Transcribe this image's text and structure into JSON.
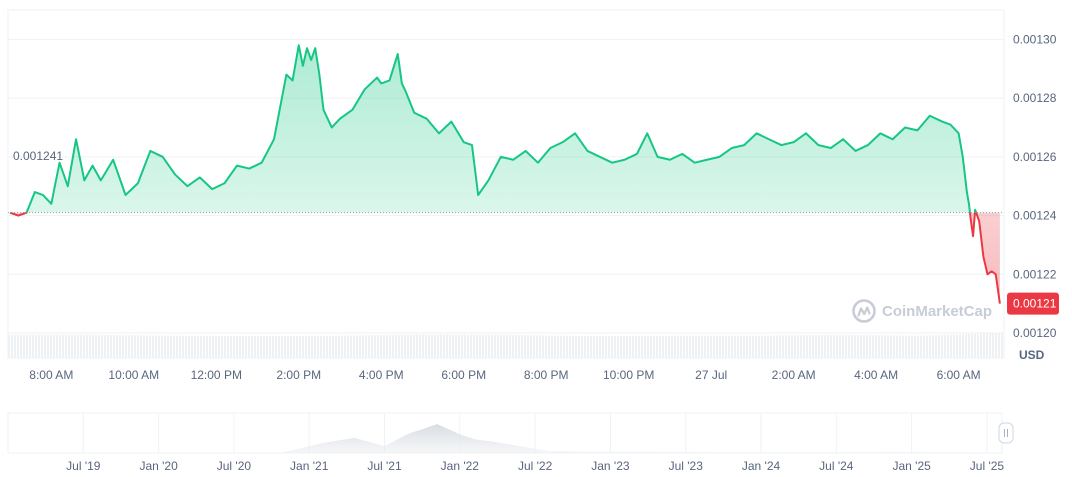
{
  "watermark": {
    "brand": "CoinMarketCap",
    "icon": "coinmarketcap-logo-icon"
  },
  "currency": "USD",
  "reference_price": {
    "value": 0.001241,
    "label": "0.001241"
  },
  "current_price": {
    "value": 0.00121,
    "label": "0.00121"
  },
  "colors": {
    "up_line": "#16c784",
    "down_line": "#ea3943",
    "up_fill": "#16c784",
    "down_fill": "#ea3943",
    "current_badge": "#ea3943",
    "volume": "#eff2f5",
    "grid": "#eff2f5",
    "tick_text": "#58667e"
  },
  "navigator_handle_icon": "pause-handle-icon",
  "chart_data": [
    {
      "type": "line",
      "title": "",
      "xlabel": "",
      "ylabel": "USD",
      "ylim": [
        0.0011915,
        0.00131
      ],
      "yticks": [
        "0.00120",
        "0.00122",
        "0.00124",
        "0.00126",
        "0.00128",
        "0.00130"
      ],
      "ytick_values": [
        0.0012,
        0.00122,
        0.00124,
        0.00126,
        0.00128,
        0.0013
      ],
      "xlim": [
        6.95,
        31.1
      ],
      "x_unit": "hours from midnight of the first day (24+ = 27 Jul)",
      "xticks": [
        "8:00 AM",
        "10:00 AM",
        "12:00 PM",
        "2:00 PM",
        "4:00 PM",
        "6:00 PM",
        "8:00 PM",
        "10:00 PM",
        "27 Jul",
        "2:00 AM",
        "4:00 AM",
        "6:00 AM"
      ],
      "xtick_values": [
        8,
        10,
        12,
        14,
        16,
        18,
        20,
        22,
        24,
        26,
        28,
        30
      ],
      "grid": true,
      "legend": "none",
      "series": [
        {
          "x": [
            7.0,
            7.2,
            7.4,
            7.6,
            7.8,
            8.0,
            8.2,
            8.4,
            8.6,
            8.8,
            9.0,
            9.2,
            9.5,
            9.8,
            10.1,
            10.4,
            10.7,
            11.0,
            11.3,
            11.6,
            11.9,
            12.2,
            12.5,
            12.8,
            13.1,
            13.4,
            13.7,
            13.85,
            14.0,
            14.1,
            14.2,
            14.3,
            14.4,
            14.5,
            14.6,
            14.8,
            15.0,
            15.3,
            15.6,
            15.9,
            16.0,
            16.2,
            16.4,
            16.5,
            16.6,
            16.8,
            17.1,
            17.4,
            17.7,
            18.0,
            18.2,
            18.35,
            18.6,
            18.9,
            19.2,
            19.5,
            19.8,
            20.1,
            20.4,
            20.7,
            21.0,
            21.3,
            21.6,
            21.9,
            22.2,
            22.45,
            22.7,
            23.0,
            23.3,
            23.6,
            23.9,
            24.2,
            24.5,
            24.8,
            25.1,
            25.4,
            25.7,
            26.0,
            26.3,
            26.6,
            26.9,
            27.2,
            27.5,
            27.8,
            28.1,
            28.4,
            28.7,
            29.0,
            29.3,
            29.6,
            29.8,
            30.0,
            30.1,
            30.2,
            30.25,
            30.3,
            30.35,
            30.4,
            30.5,
            30.6,
            30.7,
            30.8,
            30.9,
            31.0
          ],
          "y": [
            0.001241,
            0.00124,
            0.001241,
            0.001248,
            0.001247,
            0.001244,
            0.001258,
            0.00125,
            0.001266,
            0.001252,
            0.001257,
            0.001252,
            0.001259,
            0.001247,
            0.001251,
            0.001262,
            0.00126,
            0.001254,
            0.00125,
            0.001253,
            0.001249,
            0.001251,
            0.001257,
            0.001256,
            0.001258,
            0.001266,
            0.001288,
            0.001286,
            0.001298,
            0.001291,
            0.001297,
            0.001293,
            0.001297,
            0.001288,
            0.001276,
            0.00127,
            0.001273,
            0.001276,
            0.001283,
            0.001287,
            0.001285,
            0.001286,
            0.001295,
            0.001285,
            0.001282,
            0.001275,
            0.001273,
            0.001268,
            0.001272,
            0.001265,
            0.001264,
            0.001247,
            0.001252,
            0.00126,
            0.001259,
            0.001262,
            0.001258,
            0.001263,
            0.001265,
            0.001268,
            0.001262,
            0.00126,
            0.001258,
            0.001259,
            0.001261,
            0.001268,
            0.00126,
            0.001259,
            0.001261,
            0.001258,
            0.001259,
            0.00126,
            0.001263,
            0.001264,
            0.001268,
            0.001266,
            0.001264,
            0.001265,
            0.001268,
            0.001264,
            0.001263,
            0.001266,
            0.001262,
            0.001264,
            0.001268,
            0.001266,
            0.00127,
            0.001269,
            0.001274,
            0.001272,
            0.001271,
            0.001268,
            0.00126,
            0.001248,
            0.001244,
            0.001238,
            0.001233,
            0.001242,
            0.001238,
            0.001226,
            0.00122,
            0.001221,
            0.00122,
            0.00121
          ]
        }
      ],
      "volume": {
        "relative_height_by_time": [
          0.55,
          0.55,
          0.53,
          0.52,
          0.53,
          0.56,
          0.55,
          0.52,
          0.53,
          0.53,
          0.55,
          0.53,
          0.6
        ]
      }
    },
    {
      "type": "area",
      "title": "",
      "xlabel": "",
      "ylabel": "",
      "x_unit": "years since 1 Jan 2019",
      "xlim": [
        0.0,
        6.6
      ],
      "xticks": [
        "Jul '19",
        "Jan '20",
        "Jul '20",
        "Jan '21",
        "Jul '21",
        "Jan '22",
        "Jul '22",
        "Jan '23",
        "Jul '23",
        "Jan '24",
        "Jul '24",
        "Jan '25",
        "Jul '25"
      ],
      "xtick_values": [
        0.5,
        1.0,
        1.5,
        2.0,
        2.5,
        3.0,
        3.5,
        4.0,
        4.5,
        5.0,
        5.5,
        6.0,
        6.5
      ],
      "grid": true,
      "legend": "none",
      "series": [
        {
          "x": [
            0.0,
            1.8,
            2.1,
            2.3,
            2.5,
            2.65,
            2.85,
            3.0,
            3.1,
            3.2,
            3.4,
            3.6,
            4.0,
            5.0,
            6.0,
            6.4,
            6.6
          ],
          "y": [
            0.0,
            0.0,
            0.3,
            0.45,
            0.2,
            0.55,
            0.85,
            0.55,
            0.4,
            0.35,
            0.2,
            0.05,
            0.04,
            0.02,
            0.03,
            0.02,
            0.0
          ]
        }
      ]
    }
  ]
}
